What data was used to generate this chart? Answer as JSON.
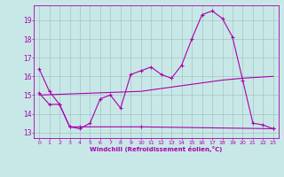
{
  "xlabel": "Windchill (Refroidissement éolien,°C)",
  "background_color": "#c8e8e8",
  "line_color": "#aa00aa",
  "xlim": [
    -0.5,
    23.5
  ],
  "ylim": [
    12.7,
    19.8
  ],
  "yticks": [
    13,
    14,
    15,
    16,
    17,
    18,
    19
  ],
  "xticks": [
    0,
    1,
    2,
    3,
    4,
    5,
    6,
    7,
    8,
    9,
    10,
    11,
    12,
    13,
    14,
    15,
    16,
    17,
    18,
    19,
    20,
    21,
    22,
    23
  ],
  "line1_x": [
    0,
    1,
    2,
    3,
    4,
    5,
    6,
    7,
    8,
    9,
    10,
    11,
    12,
    13,
    14,
    15,
    16,
    17,
    18,
    19,
    20,
    21,
    22,
    23
  ],
  "line1_y": [
    16.4,
    15.2,
    14.5,
    13.3,
    13.2,
    13.5,
    14.8,
    15.0,
    14.3,
    16.1,
    16.3,
    16.5,
    16.1,
    15.9,
    16.6,
    18.0,
    19.3,
    19.5,
    19.1,
    18.1,
    15.8,
    13.5,
    13.4,
    13.2
  ],
  "line2_x": [
    0,
    1,
    2,
    3,
    4,
    10,
    23
  ],
  "line2_y": [
    15.1,
    14.5,
    14.5,
    13.3,
    13.3,
    13.3,
    13.2
  ],
  "line3_x": [
    0,
    10,
    14,
    18,
    20,
    23
  ],
  "line3_y": [
    15.0,
    15.2,
    15.5,
    15.8,
    15.9,
    16.0
  ]
}
